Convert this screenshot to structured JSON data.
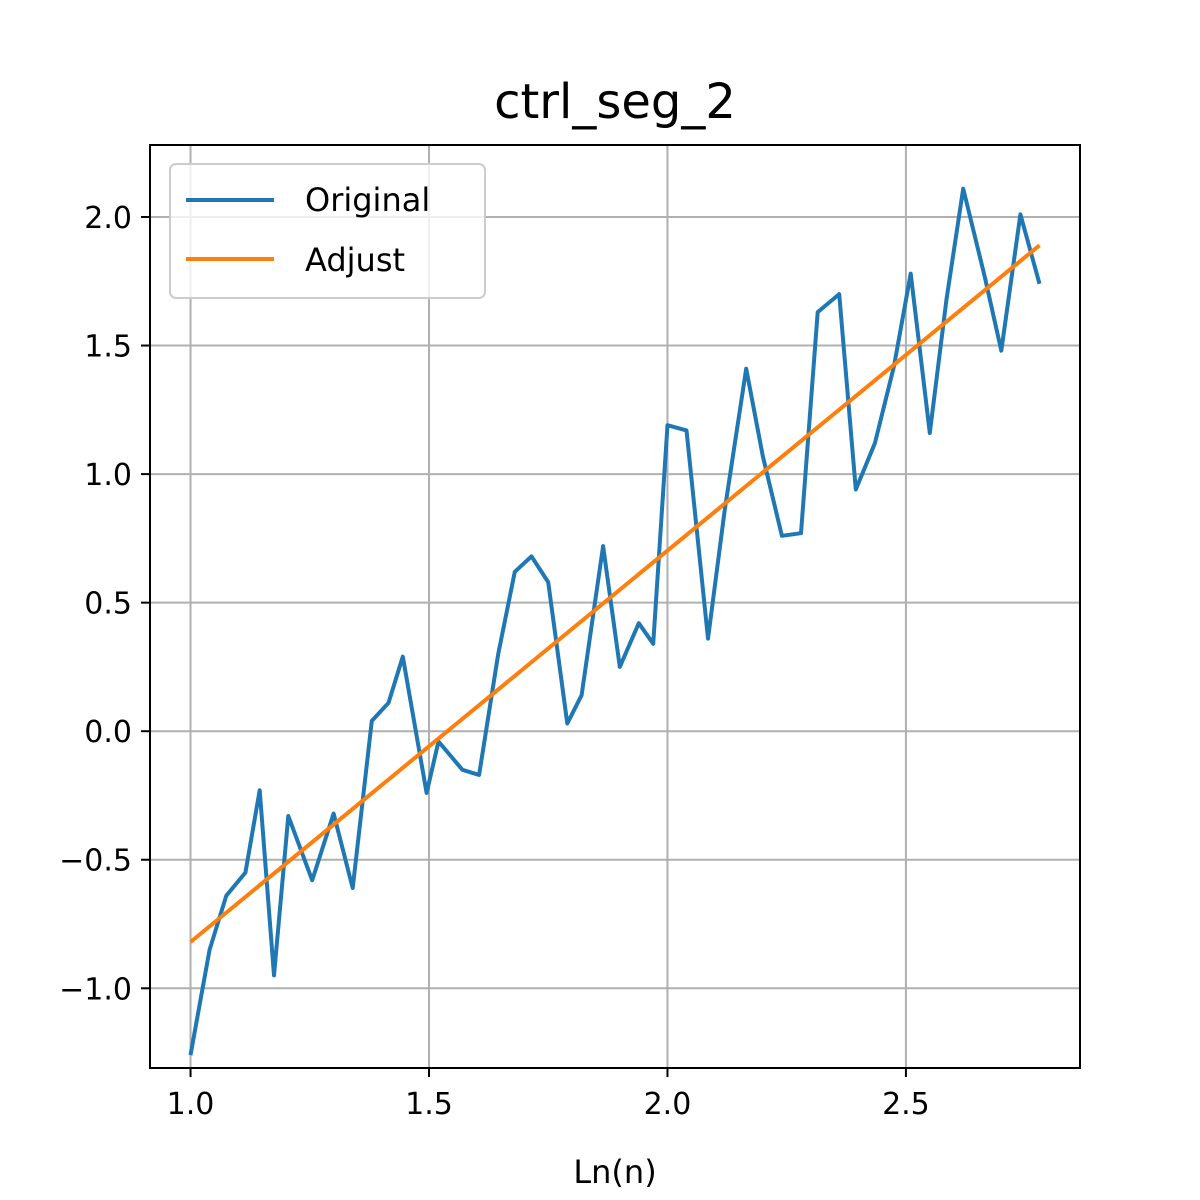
{
  "chart_data": {
    "type": "line",
    "title": "ctrl_seg_2",
    "xlabel": "Ln(n)",
    "ylabel": "",
    "xlim": [
      0.915,
      2.865
    ],
    "ylim": [
      -1.31,
      2.28
    ],
    "xticks": [
      1.0,
      1.5,
      2.0,
      2.5
    ],
    "xtick_labels": [
      "1.0",
      "1.5",
      "2.0",
      "2.5"
    ],
    "yticks": [
      -1.0,
      -0.5,
      0.0,
      0.5,
      1.0,
      1.5,
      2.0
    ],
    "ytick_labels": [
      "−1.0",
      "−0.5",
      "0.0",
      "0.5",
      "1.0",
      "1.5",
      "2.0"
    ],
    "grid": true,
    "legend_position": "upper-left",
    "series": [
      {
        "name": "Original",
        "color": "#1f77b4",
        "x": [
          1.0,
          1.04,
          1.075,
          1.115,
          1.145,
          1.175,
          1.205,
          1.255,
          1.3,
          1.34,
          1.38,
          1.415,
          1.445,
          1.495,
          1.52,
          1.57,
          1.605,
          1.645,
          1.68,
          1.715,
          1.75,
          1.79,
          1.82,
          1.865,
          1.9,
          1.94,
          1.97,
          2.0,
          2.04,
          2.085,
          2.12,
          2.165,
          2.2,
          2.24,
          2.28,
          2.315,
          2.36,
          2.395,
          2.435,
          2.475,
          2.51,
          2.55,
          2.585,
          2.62,
          2.665,
          2.7,
          2.74,
          2.78
        ],
        "y": [
          -1.26,
          -0.85,
          -0.64,
          -0.55,
          -0.23,
          -0.95,
          -0.33,
          -0.58,
          -0.32,
          -0.61,
          0.04,
          0.11,
          0.29,
          -0.24,
          -0.04,
          -0.15,
          -0.17,
          0.3,
          0.62,
          0.68,
          0.58,
          0.03,
          0.14,
          0.72,
          0.25,
          0.42,
          0.34,
          1.19,
          1.17,
          0.36,
          0.86,
          1.41,
          1.07,
          0.76,
          0.77,
          1.63,
          1.7,
          0.94,
          1.12,
          1.42,
          1.78,
          1.16,
          1.68,
          2.11,
          1.77,
          1.48,
          2.01,
          1.74
        ]
      },
      {
        "name": "Adjust",
        "color": "#ff7f0e",
        "x": [
          1.0,
          2.78
        ],
        "y": [
          -0.82,
          1.89
        ]
      }
    ]
  }
}
